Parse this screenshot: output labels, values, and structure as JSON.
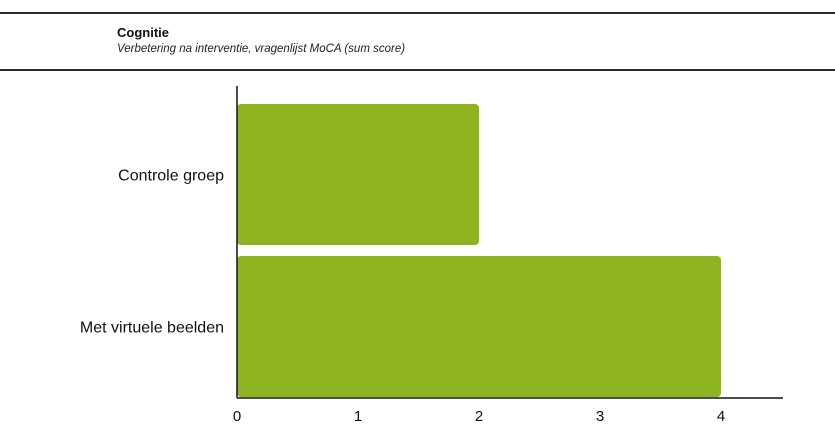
{
  "chart_data": {
    "type": "bar",
    "orientation": "horizontal",
    "title": "Cognitie",
    "subtitle": "Verbetering na interventie, vragenlijst MoCA (sum score)",
    "categories": [
      "Controle groep",
      "Met virtuele beelden"
    ],
    "values": [
      2,
      4
    ],
    "xlim": [
      0,
      4.4
    ],
    "xticks": [
      "0",
      "1",
      "2",
      "3",
      "4"
    ],
    "xlabel": "",
    "ylabel": "",
    "grid": false,
    "legend": "none",
    "bar_color": "#8db420"
  }
}
